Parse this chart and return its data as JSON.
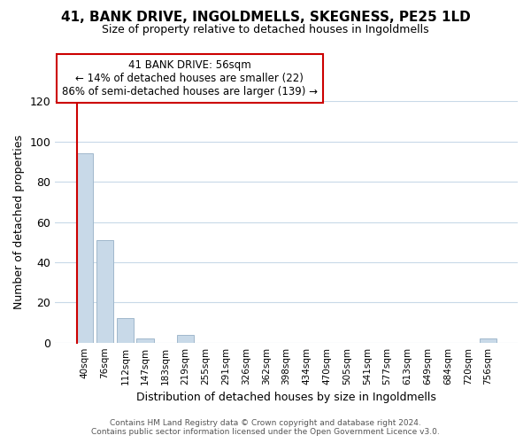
{
  "title": "41, BANK DRIVE, INGOLDMELLS, SKEGNESS, PE25 1LD",
  "subtitle": "Size of property relative to detached houses in Ingoldmells",
  "xlabel": "Distribution of detached houses by size in Ingoldmells",
  "ylabel": "Number of detached properties",
  "footer_line1": "Contains HM Land Registry data © Crown copyright and database right 2024.",
  "footer_line2": "Contains public sector information licensed under the Open Government Licence v3.0.",
  "bar_labels": [
    "40sqm",
    "76sqm",
    "112sqm",
    "147sqm",
    "183sqm",
    "219sqm",
    "255sqm",
    "291sqm",
    "326sqm",
    "362sqm",
    "398sqm",
    "434sqm",
    "470sqm",
    "505sqm",
    "541sqm",
    "577sqm",
    "613sqm",
    "649sqm",
    "684sqm",
    "720sqm",
    "756sqm"
  ],
  "bar_values": [
    94,
    51,
    12,
    2,
    0,
    4,
    0,
    0,
    0,
    0,
    0,
    0,
    0,
    0,
    0,
    0,
    0,
    0,
    0,
    0,
    2
  ],
  "bar_color": "#c8d9e8",
  "bar_edge_color": "#a0b8cc",
  "annotation_title": "41 BANK DRIVE: 56sqm",
  "annotation_line1": "← 14% of detached houses are smaller (22)",
  "annotation_line2": "86% of semi-detached houses are larger (139) →",
  "annotation_box_color": "#ffffff",
  "annotation_box_edge": "#cc0000",
  "property_line_color": "#cc0000",
  "ylim": [
    0,
    120
  ],
  "yticks": [
    0,
    20,
    40,
    60,
    80,
    100,
    120
  ],
  "grid_color": "#c8d9e8",
  "background_color": "#ffffff",
  "title_fontsize": 11,
  "subtitle_fontsize": 9,
  "ylabel_fontsize": 9,
  "xlabel_fontsize": 9,
  "footer_fontsize": 6.5,
  "annotation_fontsize": 8.5
}
